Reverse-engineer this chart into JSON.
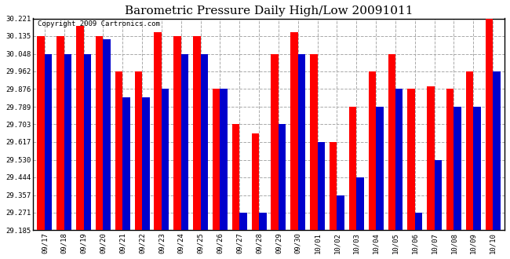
{
  "title": "Barometric Pressure Daily High/Low 20091011",
  "copyright": "Copyright 2009 Cartronics.com",
  "ylabel_ticks": [
    29.185,
    29.271,
    29.357,
    29.444,
    29.53,
    29.617,
    29.703,
    29.789,
    29.876,
    29.962,
    30.048,
    30.135,
    30.221
  ],
  "ylim": [
    29.185,
    30.221
  ],
  "categories": [
    "09/17",
    "09/18",
    "09/19",
    "09/20",
    "09/21",
    "09/22",
    "09/23",
    "09/24",
    "09/25",
    "09/26",
    "09/27",
    "09/28",
    "09/29",
    "09/30",
    "10/01",
    "10/02",
    "10/03",
    "10/04",
    "10/05",
    "10/06",
    "10/07",
    "10/08",
    "10/09",
    "10/10"
  ],
  "high_values": [
    30.135,
    30.135,
    30.185,
    30.135,
    29.962,
    29.962,
    30.155,
    30.135,
    30.135,
    29.876,
    29.703,
    29.66,
    30.048,
    30.155,
    30.048,
    29.617,
    29.789,
    29.962,
    30.048,
    29.876,
    29.89,
    29.876,
    29.962,
    30.221
  ],
  "low_values": [
    30.048,
    30.048,
    30.048,
    30.12,
    29.835,
    29.835,
    29.876,
    30.048,
    30.048,
    29.876,
    29.271,
    29.271,
    29.703,
    30.048,
    29.617,
    29.357,
    29.444,
    29.789,
    29.876,
    29.271,
    29.53,
    29.789,
    29.789,
    29.962
  ],
  "bar_width": 0.38,
  "high_color": "#ff0000",
  "low_color": "#0000cc",
  "bg_color": "#ffffff",
  "plot_bg_color": "#ffffff",
  "grid_color": "#aaaaaa",
  "title_fontsize": 11,
  "tick_fontsize": 6.5,
  "copyright_fontsize": 6.5
}
